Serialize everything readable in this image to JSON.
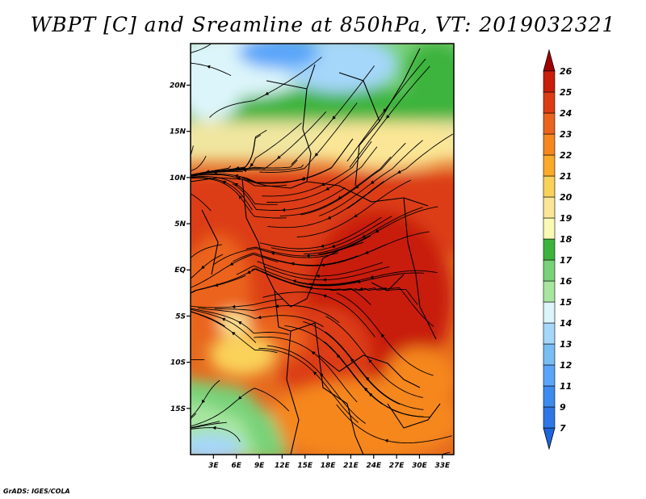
{
  "title": "WBPT [C] and Sreamline at 850hPa, VT: 2019032321",
  "credit": "GrADS: IGES/COLA",
  "map": {
    "lat_labels": [
      "20N",
      "15N",
      "10N",
      "5N",
      "EQ",
      "5S",
      "10S",
      "15S"
    ],
    "lat_values": [
      20,
      15,
      10,
      5,
      0,
      -5,
      -10,
      -15
    ],
    "lon_labels": [
      "3E",
      "6E",
      "9E",
      "12E",
      "15E",
      "18E",
      "21E",
      "24E",
      "27E",
      "30E",
      "33E"
    ],
    "lon_values": [
      3,
      6,
      9,
      12,
      15,
      18,
      21,
      24,
      27,
      30,
      33
    ],
    "lat_range": [
      -20,
      24.5
    ],
    "lon_range": [
      0,
      34.5
    ]
  },
  "colorbar": {
    "labels": [
      "7",
      "9",
      "11",
      "12",
      "13",
      "14",
      "15",
      "16",
      "17",
      "18",
      "19",
      "20",
      "21",
      "22",
      "23",
      "24",
      "25",
      "26"
    ],
    "colors": [
      "#1e64dc",
      "#2d78e6",
      "#3c8cf0",
      "#5aa5fa",
      "#78bef5",
      "#a5d7fa",
      "#dcf5fa",
      "#a8e6a0",
      "#78d278",
      "#3cb43c",
      "#fafab4",
      "#fae696",
      "#fad25a",
      "#faaa28",
      "#f5871e",
      "#eb641e",
      "#dc3c14",
      "#c81e0a",
      "#a00000"
    ]
  }
}
